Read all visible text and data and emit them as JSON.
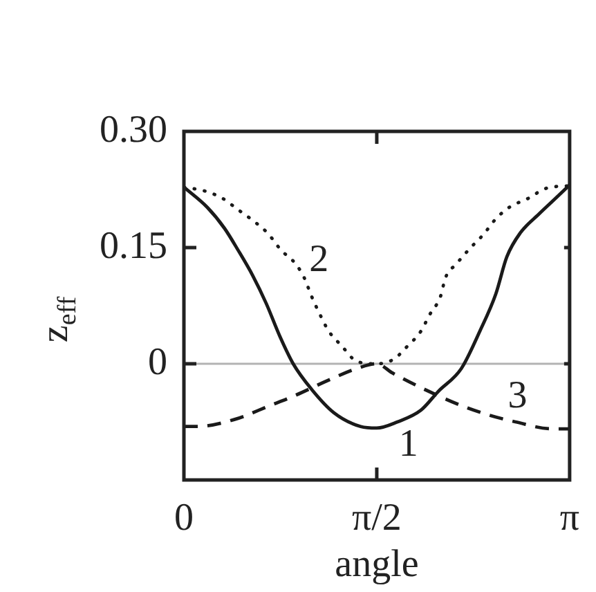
{
  "chart_data": {
    "type": "line",
    "xlabel": "angle",
    "ylabel": "z$_{eff}$",
    "xlim": [
      0,
      3.1416
    ],
    "xticks": [
      0,
      {
        "value": 1.5708,
        "label": "π/2"
      },
      {
        "value": 3.1416,
        "label": "π"
      }
    ],
    "ylim": [
      -0.15,
      0.3
    ],
    "yticks": [
      0,
      0.15,
      {
        "value": 0.3,
        "label": "0.30"
      }
    ],
    "marker": "none",
    "series": [
      {
        "name": "1",
        "color": "#1a1a1a",
        "line_style": "solid",
        "x": [
          0,
          0.19,
          0.33,
          0.44,
          0.56,
          0.67,
          0.78,
          0.89,
          1.04,
          1.22,
          1.44,
          1.57,
          1.74,
          1.93,
          2.07,
          2.26,
          2.41,
          2.54,
          2.63,
          2.74,
          2.89,
          3.03,
          3.1416
        ],
        "values": [
          0.228,
          0.202,
          0.175,
          0.147,
          0.114,
          0.078,
          0.036,
          0,
          -0.033,
          -0.063,
          -0.081,
          -0.083,
          -0.075,
          -0.06,
          -0.036,
          -0.006,
          0.042,
          0.09,
          0.138,
          0.169,
          0.193,
          0.214,
          0.231
        ]
      },
      {
        "name": "2",
        "color": "#1a1a1a",
        "line_style": "dotted",
        "x": [
          0,
          0.17,
          0.31,
          0.44,
          0.57,
          0.68,
          0.79,
          0.91,
          0.98,
          1.04,
          1.11,
          1.18,
          1.28,
          1.41,
          1.57,
          1.71,
          1.81,
          1.93,
          2.0,
          2.09,
          2.13,
          2.22,
          2.33,
          2.44,
          2.54,
          2.65,
          2.81,
          2.94,
          3.1416
        ],
        "values": [
          0.228,
          0.223,
          0.214,
          0.199,
          0.184,
          0.169,
          0.147,
          0.129,
          0.111,
          0.087,
          0.063,
          0.042,
          0.024,
          0.003,
          0,
          0.006,
          0.021,
          0.042,
          0.063,
          0.087,
          0.111,
          0.129,
          0.149,
          0.167,
          0.187,
          0.202,
          0.214,
          0.226,
          0.23
        ]
      },
      {
        "name": "3",
        "color": "#1a1a1a",
        "line_style": "dashed",
        "x": [
          0,
          0.11,
          0.41,
          0.7,
          0.89,
          1.18,
          1.41,
          1.57,
          1.7,
          1.96,
          2.26,
          2.48,
          2.7,
          3.0,
          3.1416
        ],
        "values": [
          -0.081,
          -0.081,
          -0.072,
          -0.054,
          -0.042,
          -0.021,
          -0.006,
          0,
          -0.012,
          -0.033,
          -0.054,
          -0.066,
          -0.075,
          -0.084,
          -0.084
        ]
      }
    ],
    "ref_lines": [
      {
        "axis": "y",
        "value": 0,
        "color": "#b3b3b3"
      }
    ]
  }
}
